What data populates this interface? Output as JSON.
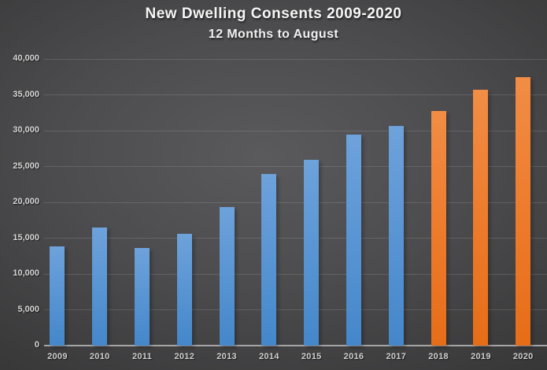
{
  "header": {
    "title": "New Dwelling Consents 2009-2020",
    "subtitle": "12 Months to August"
  },
  "colors": {
    "blue_bar": "#5B9BD5",
    "orange_bar": "#ED7D31",
    "background_center": "#58585A",
    "background_edge": "#262626",
    "axis_line": "#A6A6A6",
    "tick_label": "#D6D6D6"
  },
  "chart_data": {
    "type": "bar",
    "title": "New Dwelling Consents 2009-2020",
    "subtitle": "12 Months to August",
    "categories": [
      "2009",
      "2010",
      "2011",
      "2012",
      "2013",
      "2014",
      "2015",
      "2016",
      "2017",
      "2018",
      "2019",
      "2020"
    ],
    "values": [
      13900,
      16450,
      13600,
      15650,
      19350,
      24000,
      25950,
      29450,
      30700,
      32800,
      35700,
      37500
    ],
    "bar_colors": [
      "blue",
      "blue",
      "blue",
      "blue",
      "blue",
      "blue",
      "blue",
      "blue",
      "blue",
      "orange",
      "orange",
      "orange"
    ],
    "xlabel": "",
    "ylabel": "",
    "ylim": [
      0,
      40000
    ],
    "ytick_interval": 5000,
    "ytick_labels": [
      "0",
      "5,000",
      "10,000",
      "15,000",
      "20,000",
      "25,000",
      "30,000",
      "35,000",
      "40,000"
    ],
    "grid": true,
    "legend": false
  }
}
